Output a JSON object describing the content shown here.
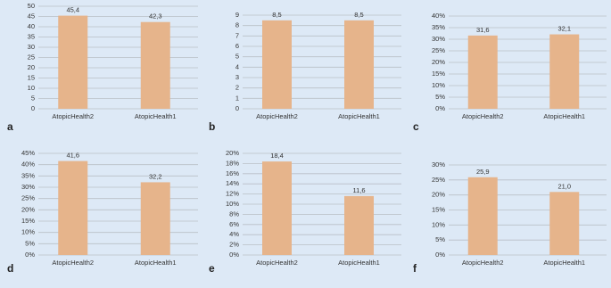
{
  "chart_data": [
    {
      "type": "bar",
      "panel": "a",
      "categories": [
        "AtopicHealth2",
        "AtopicHealth1"
      ],
      "values": [
        45.4,
        42.3
      ],
      "value_labels": [
        "45,4",
        "42,3"
      ],
      "color": "#e6b48b",
      "ylim": [
        0,
        50
      ],
      "yticks": [
        0,
        5,
        10,
        15,
        20,
        25,
        30,
        35,
        40,
        45,
        50
      ],
      "grid": true
    },
    {
      "type": "bar",
      "panel": "b",
      "categories": [
        "AtopicHealth2",
        "AtopicHealth1"
      ],
      "values": [
        8.5,
        8.5
      ],
      "value_labels": [
        "8,5",
        "8,5"
      ],
      "color": "#e6b48b",
      "ylim": [
        0,
        9
      ],
      "yticks": [
        0,
        1,
        2,
        3,
        4,
        5,
        6,
        7,
        8,
        9
      ],
      "grid": true
    },
    {
      "type": "bar",
      "panel": "c",
      "categories": [
        "AtopicHealth2",
        "AtopicHealth1"
      ],
      "values": [
        31.6,
        32.1
      ],
      "value_labels": [
        "31,6",
        "32,1"
      ],
      "color": "#e6b48b",
      "ylim": [
        0,
        40
      ],
      "yticks": [
        {
          "value": 0,
          "label": "0%"
        },
        {
          "value": 5,
          "label": "5%"
        },
        {
          "value": 10,
          "label": "10%"
        },
        {
          "value": 15,
          "label": "15%"
        },
        {
          "value": 20,
          "label": "20%"
        },
        {
          "value": 25,
          "label": "25%"
        },
        {
          "value": 30,
          "label": "30%"
        },
        {
          "value": 35,
          "label": "35%"
        },
        {
          "value": 40,
          "label": "40%"
        }
      ],
      "grid": true
    },
    {
      "type": "bar",
      "panel": "d",
      "categories": [
        "AtopicHealth2",
        "AtopicHealth1"
      ],
      "values": [
        41.6,
        32.2
      ],
      "value_labels": [
        "41,6",
        "32,2"
      ],
      "color": "#e6b48b",
      "ylim": [
        0,
        45
      ],
      "yticks": [
        {
          "value": 0,
          "label": "0%"
        },
        {
          "value": 5,
          "label": "5%"
        },
        {
          "value": 10,
          "label": "10%"
        },
        {
          "value": 15,
          "label": "15%"
        },
        {
          "value": 20,
          "label": "20%"
        },
        {
          "value": 25,
          "label": "25%"
        },
        {
          "value": 30,
          "label": "30%"
        },
        {
          "value": 35,
          "label": "35%"
        },
        {
          "value": 40,
          "label": "40%"
        },
        {
          "value": 45,
          "label": "45%"
        }
      ],
      "grid": true
    },
    {
      "type": "bar",
      "panel": "e",
      "categories": [
        "AtopicHealth2",
        "AtopicHealth1"
      ],
      "values": [
        18.4,
        11.6
      ],
      "value_labels": [
        "18,4",
        "11,6"
      ],
      "color": "#e6b48b",
      "ylim": [
        0,
        20
      ],
      "yticks": [
        {
          "value": 0,
          "label": "0%"
        },
        {
          "value": 2,
          "label": "2%"
        },
        {
          "value": 4,
          "label": "4%"
        },
        {
          "value": 6,
          "label": "6%"
        },
        {
          "value": 8,
          "label": "8%"
        },
        {
          "value": 10,
          "label": "10%"
        },
        {
          "value": 12,
          "label": "12%"
        },
        {
          "value": 14,
          "label": "14%"
        },
        {
          "value": 16,
          "label": "16%"
        },
        {
          "value": 18,
          "label": "18%"
        },
        {
          "value": 20,
          "label": "20%"
        }
      ],
      "grid": true
    },
    {
      "type": "bar",
      "panel": "f",
      "categories": [
        "AtopicHealth2",
        "AtopicHealth1"
      ],
      "values": [
        25.9,
        21.0
      ],
      "value_labels": [
        "25,9",
        "21,0"
      ],
      "color": "#e6b48b",
      "ylim": [
        0,
        30
      ],
      "yticks": [
        {
          "value": 0,
          "label": "0%"
        },
        {
          "value": 5,
          "label": "5%"
        },
        {
          "value": 10,
          "label": "10%"
        },
        {
          "value": 15,
          "label": "15%"
        },
        {
          "value": 20,
          "label": "20%"
        },
        {
          "value": 25,
          "label": "25%"
        },
        {
          "value": 30,
          "label": "30%"
        }
      ],
      "grid": true
    }
  ]
}
